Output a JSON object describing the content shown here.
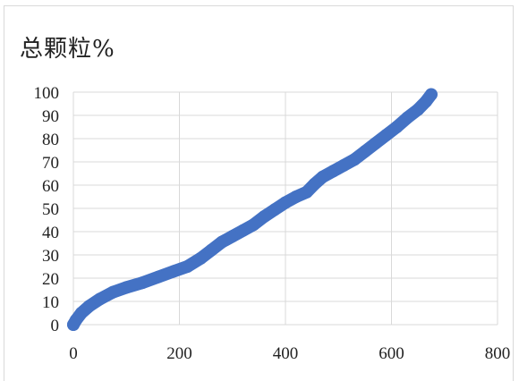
{
  "chart_data": {
    "type": "line",
    "title": "总颗粒%",
    "xlabel": "",
    "ylabel": "",
    "xlim": [
      0,
      800
    ],
    "ylim": [
      0,
      100
    ],
    "xticks": [
      "0",
      "200",
      "400",
      "600",
      "800"
    ],
    "yticks": [
      "0",
      "10",
      "20",
      "30",
      "40",
      "50",
      "60",
      "70",
      "80",
      "90",
      "100"
    ],
    "grid": true,
    "legend": "none",
    "color": "#4472C4",
    "series": [
      {
        "x": [
          0,
          5,
          15,
          30,
          50,
          75,
          100,
          130,
          160,
          190,
          215,
          240,
          260,
          280,
          300,
          320,
          340,
          360,
          380,
          400,
          420,
          440,
          455,
          470,
          490,
          510,
          530,
          550,
          570,
          590,
          610,
          630,
          650,
          665,
          675
        ],
        "y": [
          0,
          2,
          5,
          8,
          11,
          14,
          16,
          18,
          20.5,
          23,
          25,
          28.5,
          32,
          35.5,
          38,
          40.5,
          43,
          46.5,
          49.5,
          52.5,
          55,
          57,
          60.5,
          63.5,
          66,
          68.5,
          71,
          74.5,
          78,
          81.5,
          85,
          89,
          92.5,
          96,
          99
        ]
      }
    ]
  }
}
